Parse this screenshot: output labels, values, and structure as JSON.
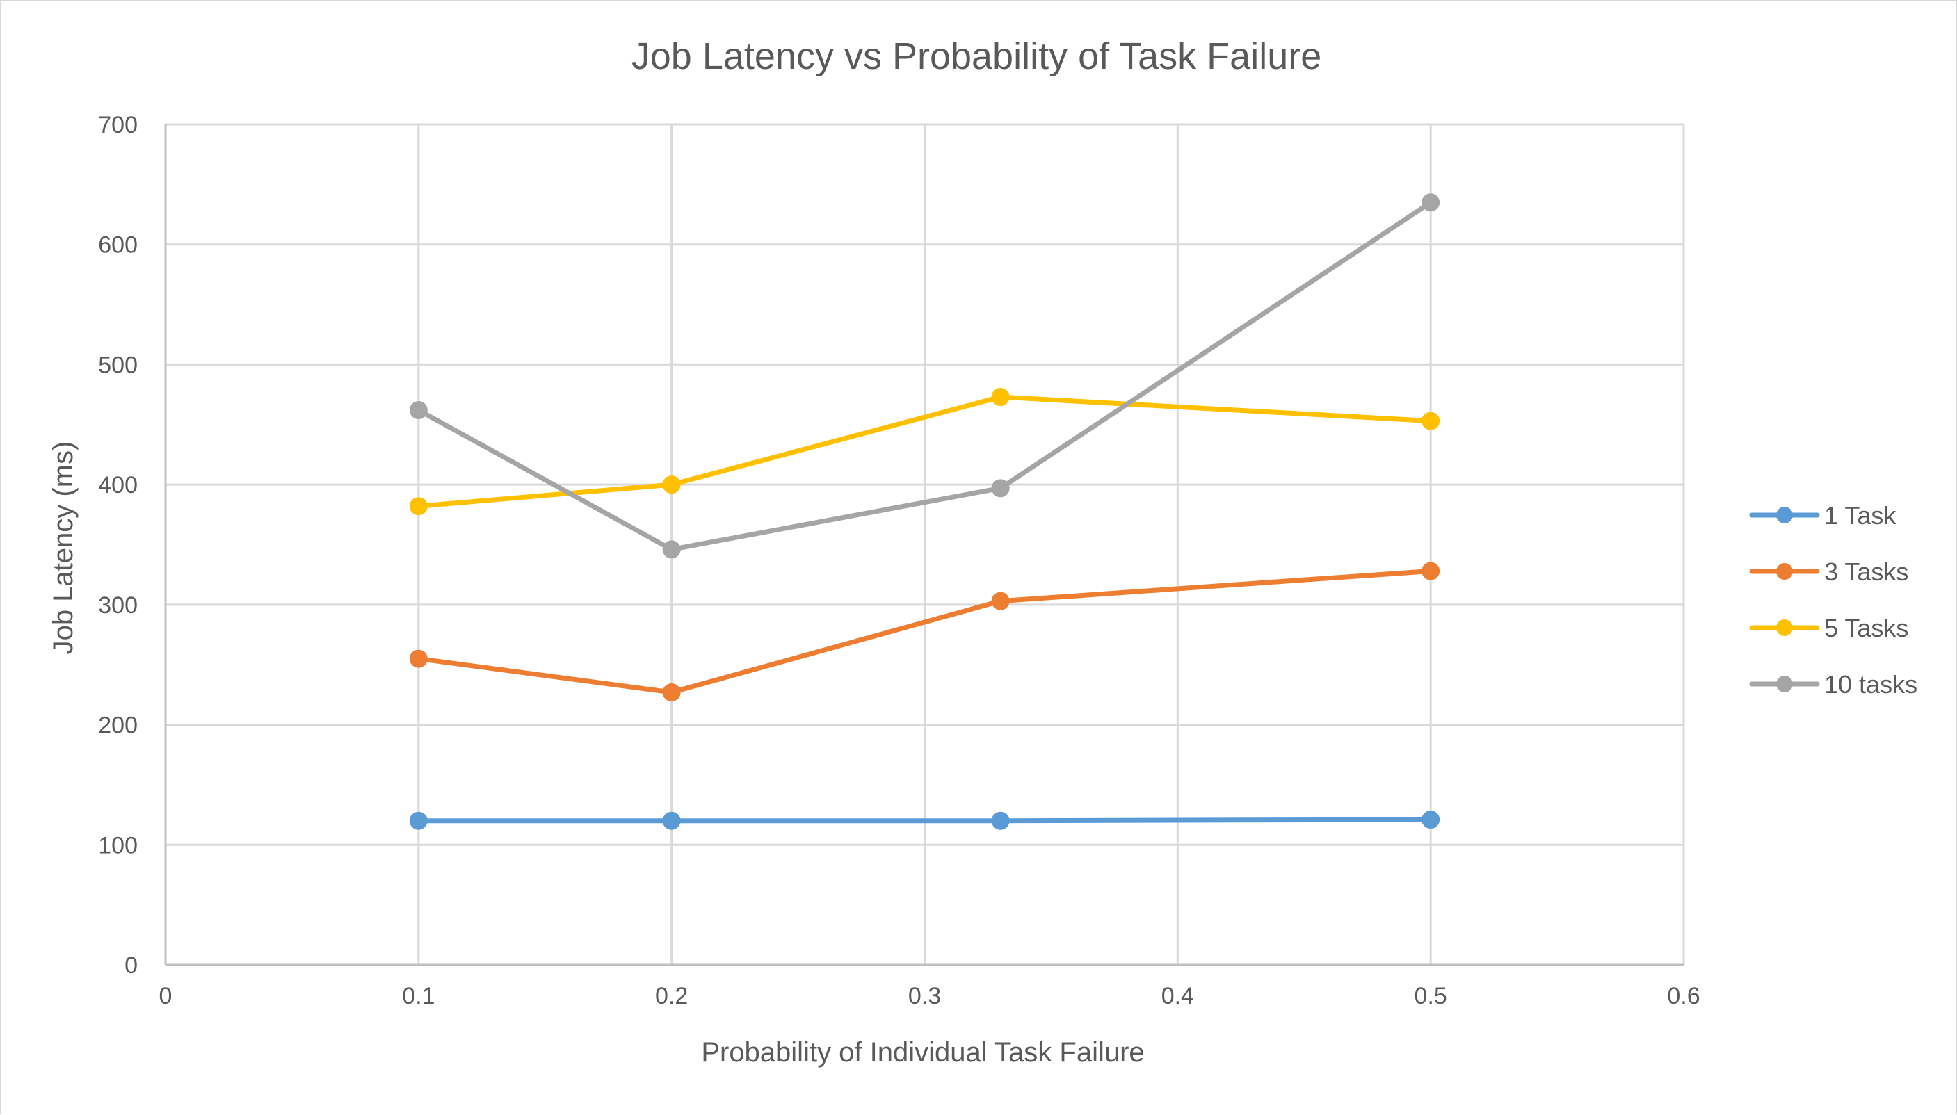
{
  "chart_data": {
    "type": "line",
    "title": "Job Latency vs Probability of Task Failure",
    "xlabel": "Probability of Individual Task Failure",
    "ylabel": "Job Latency (ms)",
    "xlim": [
      0,
      0.6
    ],
    "ylim": [
      0,
      700
    ],
    "x_ticks": [
      "0",
      "0.1",
      "0.2",
      "0.3",
      "0.4",
      "0.5",
      "0.6"
    ],
    "y_ticks": [
      "0",
      "100",
      "200",
      "300",
      "400",
      "500",
      "600",
      "700"
    ],
    "x_tick_values": [
      0,
      0.1,
      0.2,
      0.3,
      0.4,
      0.5,
      0.6
    ],
    "y_tick_values": [
      0,
      100,
      200,
      300,
      400,
      500,
      600,
      700
    ],
    "grid": true,
    "legend_position": "right",
    "x": [
      0.1,
      0.2,
      0.33,
      0.5
    ],
    "series": [
      {
        "name": "1 Task",
        "color": "#5b9bd5",
        "values": [
          120,
          120,
          120,
          121
        ]
      },
      {
        "name": "3 Tasks",
        "color": "#ed7d31",
        "values": [
          255,
          227,
          303,
          328
        ]
      },
      {
        "name": "5 Tasks",
        "color": "#ffc000",
        "values": [
          382,
          400,
          473,
          453
        ]
      },
      {
        "name": "10 tasks",
        "color": "#a5a5a5",
        "values": [
          462,
          346,
          397,
          635
        ]
      }
    ]
  }
}
